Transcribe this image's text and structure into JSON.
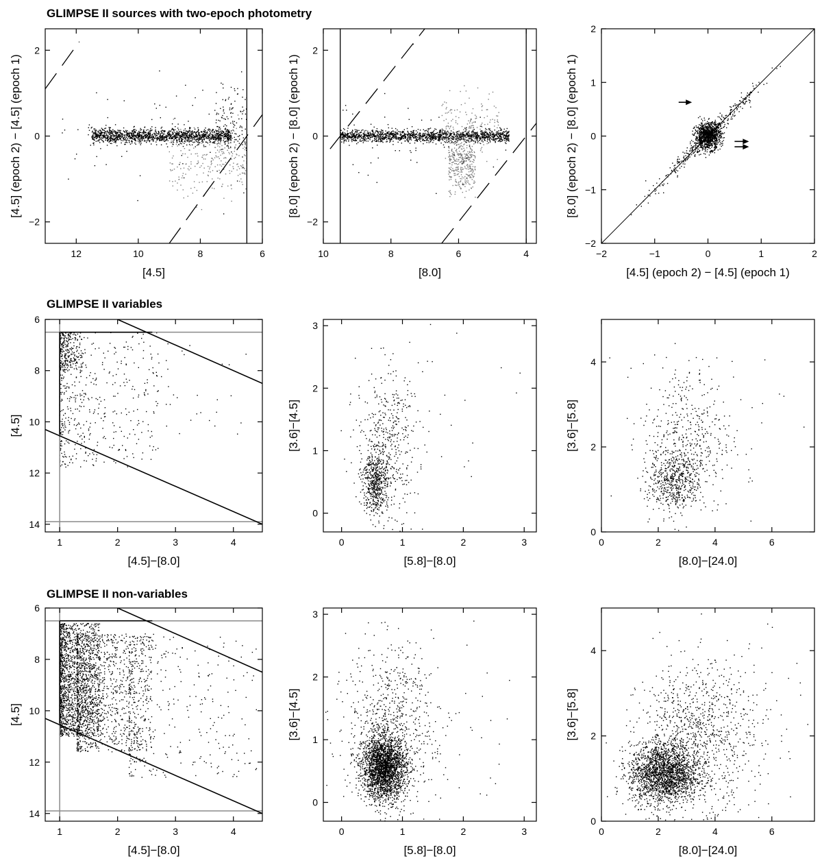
{
  "row_titles": [
    "GLIMPSE II sources with two-epoch photometry",
    "GLIMPSE II variables",
    "GLIMPSE II non-variables"
  ],
  "chart_data": [
    {
      "type": "scatter",
      "row": 0,
      "col": 0,
      "xlabel": "[4.5]",
      "ylabel": "[4.5] (epoch 2) − [4.5] (epoch 1)",
      "xlim": [
        13,
        6
      ],
      "ylim": [
        -2.5,
        2.5
      ],
      "xticks": [
        12,
        10,
        8,
        6
      ],
      "yticks": [
        -2,
        0,
        2
      ],
      "vlines": [
        6.5
      ],
      "dashed_lines": [
        [
          [
            13,
            1.1
          ],
          [
            11.9,
            2.2
          ]
        ],
        [
          [
            9.0,
            -2.5
          ],
          [
            6.0,
            0.5
          ]
        ]
      ],
      "clouds": [
        {
          "n": 1500,
          "x": [
            7,
            11.5
          ],
          "y": [
            0,
            0.08
          ],
          "gray": false
        },
        {
          "n": 250,
          "x": [
            6.5,
            9
          ],
          "y": [
            -0.6,
            0.4
          ],
          "gray": true
        },
        {
          "n": 120,
          "x": [
            6.5,
            7.5
          ],
          "y": [
            0.3,
            0.4
          ],
          "gray": false
        },
        {
          "n": 80,
          "x": [
            6.5,
            12.5
          ],
          "y": [
            0,
            0.6
          ],
          "gray": false
        }
      ]
    },
    {
      "type": "scatter",
      "row": 0,
      "col": 1,
      "xlabel": "[8.0]",
      "ylabel": "[8.0] (epoch 2) − [8.0] (epoch 1)",
      "xlim": [
        10,
        3.7
      ],
      "ylim": [
        -2.5,
        2.5
      ],
      "xticks": [
        10,
        8,
        6,
        4
      ],
      "yticks": [
        -2,
        0,
        2
      ],
      "vlines": [
        9.5,
        4.0
      ],
      "dashed_lines": [
        [
          [
            9.8,
            -0.3
          ],
          [
            7.0,
            2.5
          ]
        ],
        [
          [
            6.5,
            -2.5
          ],
          [
            3.7,
            0.3
          ]
        ]
      ],
      "clouds": [
        {
          "n": 1500,
          "x": [
            4.5,
            9.5
          ],
          "y": [
            0,
            0.07
          ],
          "gray": false
        },
        {
          "n": 400,
          "x": [
            5.5,
            6.3
          ],
          "y": [
            -0.6,
            0.35
          ],
          "gray": true
        },
        {
          "n": 150,
          "x": [
            4.8,
            6.5
          ],
          "y": [
            0.3,
            0.35
          ],
          "gray": true
        },
        {
          "n": 60,
          "x": [
            4.5,
            9.5
          ],
          "y": [
            0,
            0.5
          ],
          "gray": false
        }
      ]
    },
    {
      "type": "scatter",
      "row": 0,
      "col": 2,
      "xlabel": "[4.5] (epoch 2) − [4.5] (epoch 1)",
      "ylabel": "[8.0] (epoch 2) − [8.0] (epoch 1)",
      "xlim": [
        -2,
        2
      ],
      "ylim": [
        -2,
        2
      ],
      "xticks": [
        -2,
        -1,
        0,
        1,
        2
      ],
      "yticks": [
        -2,
        -1,
        0,
        1,
        2
      ],
      "diag_line": [
        [
          -2,
          -2
        ],
        [
          2,
          2
        ]
      ],
      "arrows": [
        [
          -0.55,
          0.63,
          -0.3,
          0.63
        ],
        [
          0.5,
          -0.1,
          0.77,
          -0.1
        ],
        [
          0.5,
          -0.2,
          0.77,
          -0.2
        ]
      ],
      "clouds": [
        {
          "n": 1000,
          "x": [
            0,
            0.12
          ],
          "y": [
            0,
            0.12
          ],
          "gray": false
        },
        {
          "n": 350,
          "diag": true,
          "x": [
            0,
            0.5
          ],
          "y": [
            0.06,
            0
          ],
          "gray": false
        }
      ]
    },
    {
      "type": "scatter",
      "row": 1,
      "col": 0,
      "xlabel": "[4.5]−[8.0]",
      "ylabel": "[4.5]",
      "xlim": [
        0.75,
        4.5
      ],
      "ylim": [
        14.3,
        6
      ],
      "xticks": [
        1,
        2,
        3,
        4
      ],
      "yticks": [
        6,
        8,
        10,
        12,
        14
      ],
      "gray_lines": [
        [
          [
            1,
            6
          ],
          [
            1,
            14.3
          ]
        ],
        [
          [
            0.75,
            6.5
          ],
          [
            4.5,
            6.5
          ]
        ],
        [
          [
            0.75,
            13.9
          ],
          [
            4.5,
            13.9
          ]
        ]
      ],
      "black_lines": [
        [
          [
            1,
            6.5
          ],
          [
            1,
            10.5
          ]
        ],
        [
          [
            1,
            6.5
          ],
          [
            2.6,
            6.5
          ]
        ],
        [
          [
            0.75,
            10.3
          ],
          [
            4.5,
            14.0
          ]
        ],
        [
          [
            2.0,
            6.0
          ],
          [
            4.5,
            8.5
          ]
        ]
      ],
      "clouds": [
        {
          "n": 250,
          "x": [
            1.0,
            1.4
          ],
          "y": [
            6.5,
            8.0
          ],
          "gray": false,
          "uniform": true
        },
        {
          "n": 500,
          "x": [
            1.0,
            2.7
          ],
          "y": [
            6.5,
            11.8
          ],
          "gray": false,
          "uniform": true
        },
        {
          "n": 30,
          "x": [
            2.7,
            4.4
          ],
          "y": [
            6.8,
            10.6
          ],
          "gray": false,
          "uniform": true
        }
      ]
    },
    {
      "type": "scatter",
      "row": 1,
      "col": 1,
      "xlabel": "[5.8]−[8.0]",
      "ylabel": "[3.6]−[4.5]",
      "xlim": [
        -0.3,
        3.2
      ],
      "ylim": [
        -0.3,
        3.1
      ],
      "xticks": [
        0,
        1,
        2,
        3
      ],
      "yticks": [
        0,
        1,
        2,
        3
      ],
      "clouds": [
        {
          "n": 500,
          "x": [
            0.55,
            0.1
          ],
          "y": [
            0.5,
            0.25
          ],
          "gray": false
        },
        {
          "n": 450,
          "x": [
            0.75,
            0.25
          ],
          "y": [
            1.1,
            0.6
          ],
          "gray": false
        },
        {
          "n": 25,
          "x": [
            1.6,
            0.6
          ],
          "y": [
            1.8,
            0.9
          ],
          "gray": false
        }
      ]
    },
    {
      "type": "scatter",
      "row": 1,
      "col": 2,
      "xlabel": "[8.0]−[24.0]",
      "ylabel": "[3.6]−[5.8]",
      "xlim": [
        0,
        7.5
      ],
      "ylim": [
        0,
        5
      ],
      "xticks": [
        0,
        2,
        4,
        6
      ],
      "yticks": [
        0,
        2,
        4
      ],
      "clouds": [
        {
          "n": 500,
          "x": [
            2.6,
            0.45
          ],
          "y": [
            1.2,
            0.35
          ],
          "gray": false
        },
        {
          "n": 450,
          "x": [
            3.0,
            0.8
          ],
          "y": [
            2.2,
            0.9
          ],
          "gray": false
        },
        {
          "n": 20,
          "x": [
            4.5,
            1.0
          ],
          "y": [
            2.5,
            1.0
          ],
          "gray": false
        }
      ]
    },
    {
      "type": "scatter",
      "row": 2,
      "col": 0,
      "xlabel": "[4.5]−[8.0]",
      "ylabel": "[4.5]",
      "xlim": [
        0.75,
        4.5
      ],
      "ylim": [
        14.3,
        6
      ],
      "xticks": [
        1,
        2,
        3,
        4
      ],
      "yticks": [
        6,
        8,
        10,
        12,
        14
      ],
      "gray_lines": [
        [
          [
            1,
            6
          ],
          [
            1,
            14.3
          ]
        ],
        [
          [
            0.75,
            6.5
          ],
          [
            4.5,
            6.5
          ]
        ],
        [
          [
            0.75,
            13.9
          ],
          [
            4.5,
            13.9
          ]
        ]
      ],
      "black_lines": [
        [
          [
            1,
            6.5
          ],
          [
            1,
            10.5
          ]
        ],
        [
          [
            1,
            6.5
          ],
          [
            2.6,
            6.5
          ]
        ],
        [
          [
            0.75,
            10.3
          ],
          [
            4.5,
            14.0
          ]
        ],
        [
          [
            2.0,
            6.0
          ],
          [
            4.5,
            8.5
          ]
        ]
      ],
      "clouds": [
        {
          "n": 1600,
          "x": [
            1.0,
            1.7
          ],
          "y": [
            6.6,
            11.0
          ],
          "gray": false,
          "uniform": true
        },
        {
          "n": 1200,
          "x": [
            1.3,
            2.6
          ],
          "y": [
            7.0,
            11.6
          ],
          "gray": false,
          "uniform": true
        },
        {
          "n": 350,
          "x": [
            2.2,
            4.4
          ],
          "y": [
            7.0,
            12.6
          ],
          "gray": false,
          "uniform": true
        }
      ]
    },
    {
      "type": "scatter",
      "row": 2,
      "col": 1,
      "xlabel": "[5.8]−[8.0]",
      "ylabel": "[3.6]−[4.5]",
      "xlim": [
        -0.3,
        3.2
      ],
      "ylim": [
        -0.3,
        3.1
      ],
      "xticks": [
        0,
        1,
        2,
        3
      ],
      "yticks": [
        0,
        1,
        2,
        3
      ],
      "clouds": [
        {
          "n": 2300,
          "x": [
            0.7,
            0.18
          ],
          "y": [
            0.55,
            0.25
          ],
          "gray": false
        },
        {
          "n": 700,
          "x": [
            0.8,
            0.35
          ],
          "y": [
            1.2,
            0.65
          ],
          "gray": false
        },
        {
          "n": 80,
          "x": [
            1.5,
            0.8
          ],
          "y": [
            1.0,
            0.8
          ],
          "gray": false
        }
      ]
    },
    {
      "type": "scatter",
      "row": 2,
      "col": 2,
      "xlabel": "[8.0]−[24.0]",
      "ylabel": "[3.6]−[5.8]",
      "xlim": [
        0,
        7.5
      ],
      "ylim": [
        0,
        5
      ],
      "xticks": [
        0,
        2,
        4,
        6
      ],
      "yticks": [
        0,
        2,
        4
      ],
      "clouds": [
        {
          "n": 2000,
          "x": [
            2.2,
            0.6
          ],
          "y": [
            1.1,
            0.35
          ],
          "gray": false
        },
        {
          "n": 900,
          "x": [
            3.3,
            1.0
          ],
          "y": [
            2.0,
            0.8
          ],
          "gray": false
        },
        {
          "n": 100,
          "x": [
            5.0,
            1.5
          ],
          "y": [
            2.5,
            1.2
          ],
          "gray": false
        }
      ]
    }
  ]
}
